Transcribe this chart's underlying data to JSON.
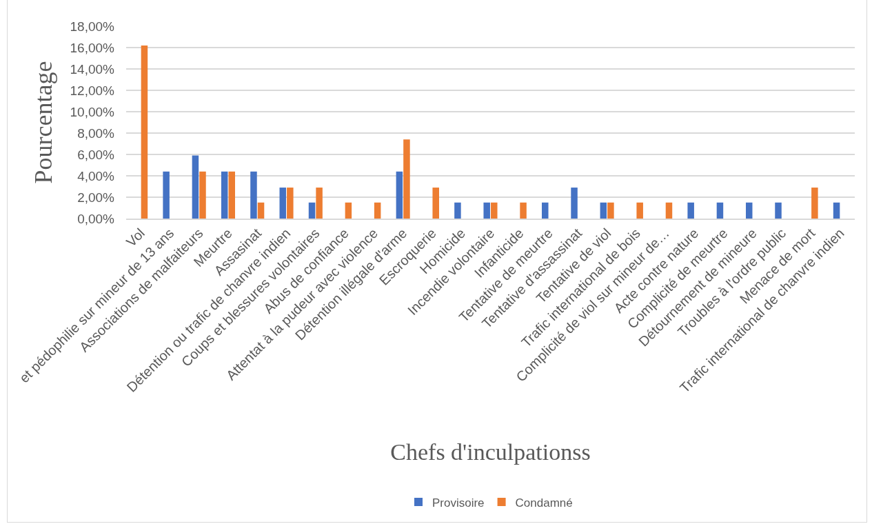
{
  "chart_data": {
    "type": "bar",
    "xlabel": "Chefs d'inculpationss",
    "ylabel": "Pourcentage",
    "categories": [
      "Vol",
      "et pédophilie sur mineur de 13 ans",
      "Associations de malfaiteurs",
      "Meurtre",
      "Assasinat",
      "Détention ou trafic de chanvre indien",
      "Coups et blessures volontaires",
      "Abus de confiance",
      "Attentat à la pudeur avec violence",
      "Détention illégale d'arme",
      "Escroquerie",
      "Homicide",
      "Incendie volontaire",
      "Infanticide",
      "Tentative de meurtre",
      "Tentative d'assassinat",
      "Tentative de viol",
      "Trafic international de bois",
      "Complicité de viol sur mineur de…",
      "Acte contre nature",
      "Complicité de meurtre",
      "Détournement de mineure",
      "Troubles à l'ordre public",
      "Menace de mort",
      "Trafic international de chanvre indien"
    ],
    "series": [
      {
        "name": "Provisoire",
        "color": "#4472c4",
        "values": [
          null,
          4.4,
          5.9,
          4.4,
          4.4,
          2.9,
          1.5,
          null,
          null,
          4.4,
          null,
          1.5,
          1.5,
          null,
          1.5,
          2.9,
          1.5,
          null,
          null,
          1.5,
          1.5,
          1.5,
          1.5,
          null,
          1.5
        ]
      },
      {
        "name": "Condamné",
        "color": "#ed7d31",
        "values": [
          16.2,
          null,
          4.4,
          4.4,
          1.5,
          2.9,
          2.9,
          1.5,
          1.5,
          7.4,
          2.9,
          null,
          1.5,
          1.5,
          null,
          null,
          1.5,
          1.5,
          1.5,
          null,
          null,
          null,
          null,
          2.9,
          null
        ]
      }
    ],
    "ylim": [
      0,
      18
    ],
    "yticks": [
      {
        "value": 0,
        "label": "0,00%"
      },
      {
        "value": 2,
        "label": "2,00%"
      },
      {
        "value": 4,
        "label": "4,00%"
      },
      {
        "value": 6,
        "label": "6,00%"
      },
      {
        "value": 8,
        "label": "8,00%"
      },
      {
        "value": 10,
        "label": "10,00%"
      },
      {
        "value": 12,
        "label": "12,00%"
      },
      {
        "value": 14,
        "label": "14,00%"
      },
      {
        "value": 16,
        "label": "16,00%"
      },
      {
        "value": 18,
        "label": "18,00%"
      }
    ],
    "grid": "y",
    "legend": "bottom"
  }
}
